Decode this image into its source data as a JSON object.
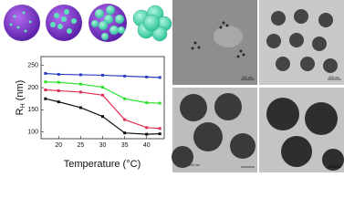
{
  "chart_data": {
    "type": "line",
    "x_label": "Temperature (°C)",
    "y_label": [
      "R",
      "H",
      " (nm)"
    ],
    "x": [
      17,
      20,
      25,
      30,
      35,
      40,
      43
    ],
    "series": [
      {
        "color": "#2b3fbf",
        "values": [
          232,
          230,
          229,
          228,
          226,
          224,
          223
        ]
      },
      {
        "color": "#2ee02e",
        "values": [
          213,
          212,
          208,
          201,
          175,
          166,
          165
        ]
      },
      {
        "color": "#e03050",
        "values": [
          195,
          193,
          190,
          183,
          128,
          110,
          108
        ]
      },
      {
        "color": "#111111",
        "values": [
          175,
          168,
          155,
          135,
          98,
          95,
          96
        ]
      }
    ],
    "xlim": [
      16,
      44
    ],
    "ylim": [
      85,
      270
    ],
    "xticks": [
      20,
      25,
      30,
      35,
      40
    ],
    "yticks": [
      100,
      150,
      200,
      250
    ]
  },
  "images": [
    {
      "scale_bar": "200 nm"
    },
    {
      "scale_bar": "200 nm"
    },
    {
      "scale_bar": "200 nm"
    },
    {
      "scale_bar": "200 nm"
    }
  ]
}
